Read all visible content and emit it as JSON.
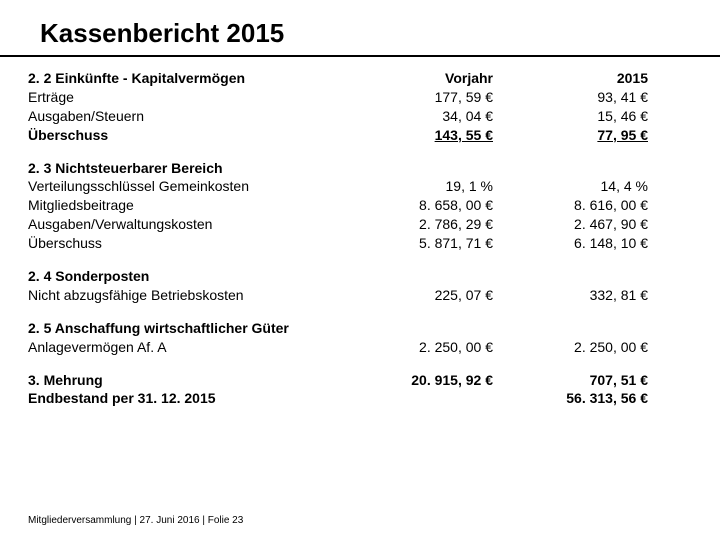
{
  "title": "Kassenbericht 2015",
  "footer": "Mitgliederversammlung | 27. Juni 2016 | Folie 23",
  "columns": {
    "prev": "Vorjahr",
    "curr": "2015"
  },
  "s22": {
    "heading": "2. 2 Einkünfte - Kapitalvermögen",
    "rows": [
      {
        "label": "Erträge",
        "prev": "177, 59 €",
        "curr": "93, 41 €"
      },
      {
        "label": "Ausgaben/Steuern",
        "prev": "34, 04 €",
        "curr": "15, 46 €"
      }
    ],
    "total": {
      "label": "Überschuss",
      "prev": "143, 55 €",
      "curr": "77, 95 €"
    }
  },
  "s23": {
    "heading": "2. 3 Nichtsteuerbarer Bereich",
    "rows": [
      {
        "label": "Verteilungsschlüssel Gemeinkosten",
        "prev": "19, 1 %",
        "curr": "14, 4 %"
      },
      {
        "label": "Mitgliedsbeitrage",
        "prev": "8. 658, 00 €",
        "curr": "8. 616, 00 €"
      },
      {
        "label": "Ausgaben/Verwaltungskosten",
        "prev": "2. 786, 29 €",
        "curr": "2. 467, 90 €"
      },
      {
        "label": "Überschuss",
        "prev": "5. 871, 71 €",
        "curr": "6. 148, 10 €"
      }
    ]
  },
  "s24": {
    "heading": "2. 4 Sonderposten",
    "rows": [
      {
        "label": "Nicht abzugsfähige Betriebskosten",
        "prev": "225, 07 €",
        "curr": "332, 81 €"
      }
    ]
  },
  "s25": {
    "heading": "2. 5 Anschaffung wirtschaftlicher Güter",
    "rows": [
      {
        "label": "Anlagevermögen Af. A",
        "prev": "2. 250, 00 €",
        "curr": "2. 250, 00 €"
      }
    ]
  },
  "s3": {
    "rows": [
      {
        "label": "3. Mehrung",
        "prev": "20. 915, 92 €",
        "curr": "707, 51 €"
      },
      {
        "label": "Endbestand per 31. 12. 2015",
        "prev": "",
        "curr": "56. 313, 56 €"
      }
    ]
  }
}
